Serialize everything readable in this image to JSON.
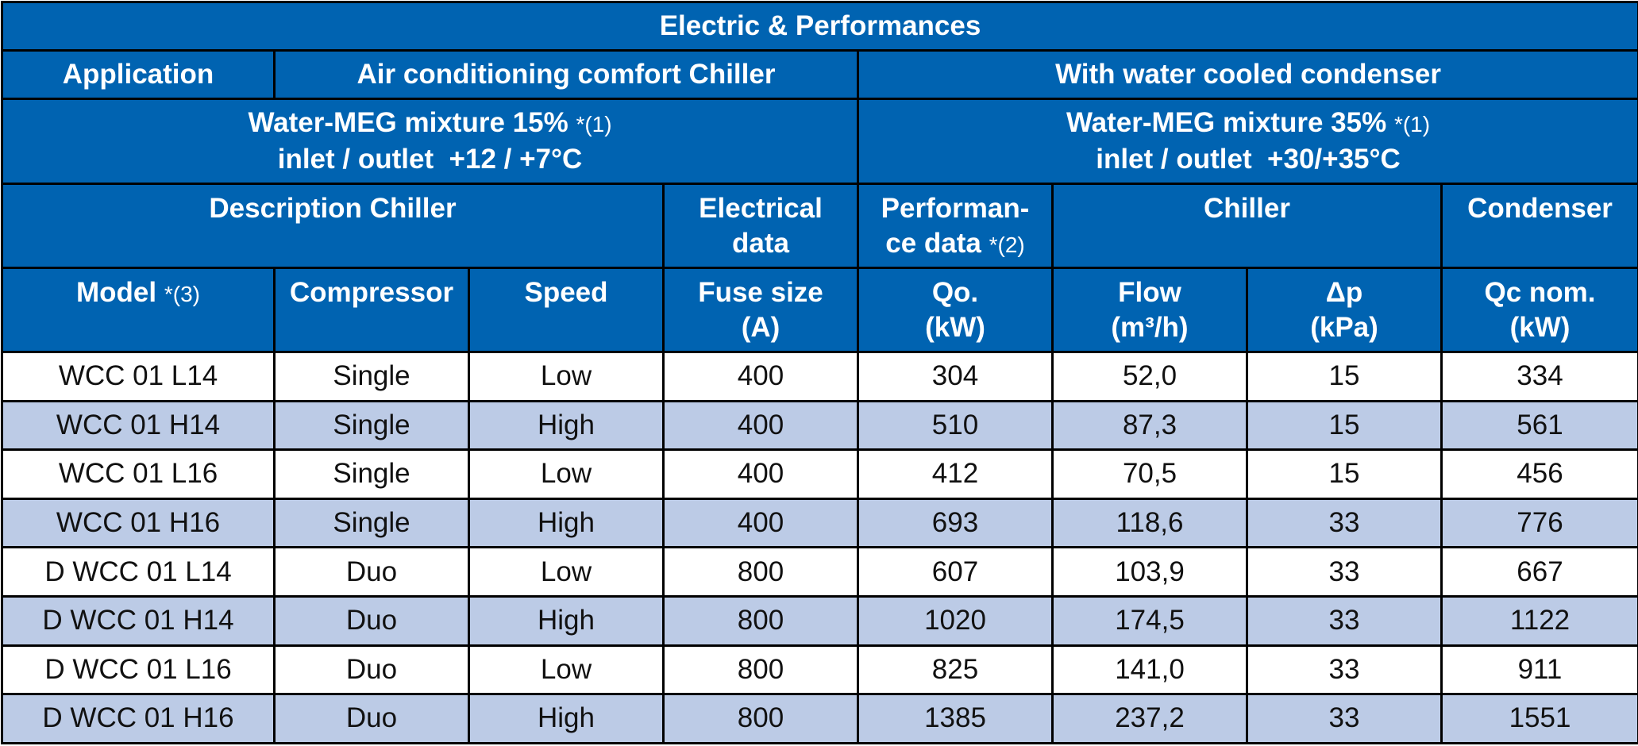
{
  "title": "Electric & Performances",
  "application": {
    "label": "Application",
    "type": "Air conditioning comfort Chiller",
    "condenser_type": "With water cooled condenser"
  },
  "conditions": {
    "chiller": {
      "line1": "Water-MEG mixture 15%",
      "note": "*(1)",
      "line2": "inlet / outlet  +12 / +7°C"
    },
    "condenser": {
      "line1": "Water-MEG mixture 35%",
      "note": "*(1)",
      "line2": "inlet / outlet  +30/+35°C"
    }
  },
  "groups": {
    "description": "Description Chiller",
    "electrical_1": "Electrical",
    "electrical_2": "data",
    "performance_1": "Performan-",
    "performance_2": "ce data",
    "performance_note": "*(2)",
    "chiller": "Chiller",
    "condenser": "Condenser"
  },
  "columns": {
    "model": "Model",
    "model_note": "*(3)",
    "compressor": "Compressor",
    "speed": "Speed",
    "fuse_1": "Fuse size",
    "fuse_2": "(A)",
    "qo_1": "Qo.",
    "qo_2": "(kW)",
    "flow_1": "Flow",
    "flow_2": "(m³/h)",
    "dp_1": "Δp",
    "dp_2": "(kPa)",
    "qc_1": "Qc nom.",
    "qc_2": "(kW)"
  },
  "rows": [
    [
      "WCC 01 L14",
      "Single",
      "Low",
      "400",
      "304",
      "52,0",
      "15",
      "334"
    ],
    [
      "WCC 01 H14",
      "Single",
      "High",
      "400",
      "510",
      "87,3",
      "15",
      "561"
    ],
    [
      "WCC 01 L16",
      "Single",
      "Low",
      "400",
      "412",
      "70,5",
      "15",
      "456"
    ],
    [
      "WCC 01 H16",
      "Single",
      "High",
      "400",
      "693",
      "118,6",
      "33",
      "776"
    ],
    [
      "D WCC 01 L14",
      "Duo",
      "Low",
      "800",
      "607",
      "103,9",
      "33",
      "667"
    ],
    [
      "D WCC 01 H14",
      "Duo",
      "High",
      "800",
      "1020",
      "174,5",
      "33",
      "1122"
    ],
    [
      "D WCC 01 L16",
      "Duo",
      "Low",
      "800",
      "825",
      "141,0",
      "33",
      "911"
    ],
    [
      "D WCC 01 H16",
      "Duo",
      "High",
      "800",
      "1385",
      "237,2",
      "33",
      "1551"
    ]
  ],
  "colors": {
    "header_bg": "#0063b1",
    "header_text": "#ffffff",
    "row_alt_bg": "#bccbe6",
    "row_bg": "#ffffff",
    "border": "#000000"
  }
}
